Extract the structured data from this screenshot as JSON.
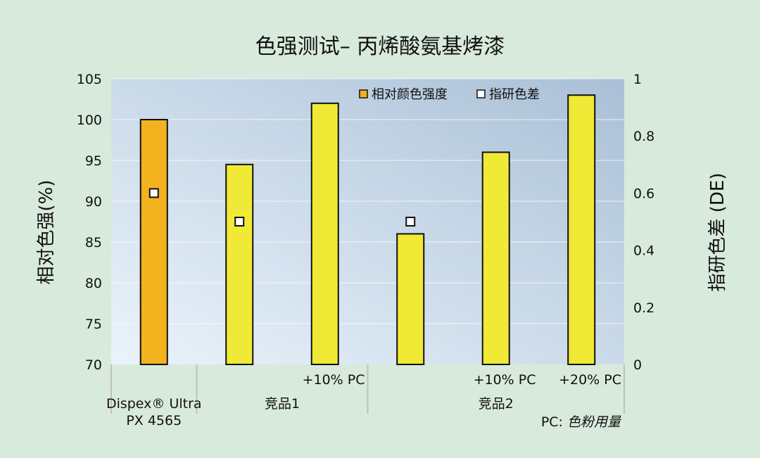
{
  "chart_data": {
    "type": "bar",
    "title": "色强测试– 丙烯酸氨基烤漆",
    "ylabel": "相对色强(%)",
    "y2label": "指研色差 (DE)",
    "ylim": [
      70,
      105
    ],
    "yticks": [
      105,
      100,
      95,
      90,
      85,
      80,
      75,
      70
    ],
    "y2lim": [
      0,
      1
    ],
    "y2ticks": [
      "1",
      "0.8",
      "0.6",
      "0.4",
      "0.2",
      "0"
    ],
    "grid": true,
    "legend_position": "top-right",
    "categories": [
      "",
      "",
      "+10% PC",
      "",
      "+10% PC",
      "+20% PC"
    ],
    "groups": [
      {
        "label_lines": [
          "Dispex® Ultra",
          "PX 4565"
        ],
        "bars": [
          0
        ]
      },
      {
        "label_lines": [
          "竞品1"
        ],
        "bars": [
          1,
          2
        ]
      },
      {
        "label_lines": [
          "竞品2"
        ],
        "bars": [
          3,
          4,
          5
        ]
      }
    ],
    "series": [
      {
        "name": "相对颜色强度",
        "axis": "left",
        "values": [
          100,
          94.5,
          102,
          86,
          96,
          103
        ]
      },
      {
        "name": "指研色差",
        "axis": "right",
        "values": [
          0.6,
          0.5,
          null,
          0.5,
          null,
          null
        ]
      }
    ],
    "bar_colors": [
      "#f3b31f",
      "#f0ea36",
      "#f0ea36",
      "#f0ea36",
      "#f0ea36",
      "#f0ea36"
    ],
    "legend_swatch_color": "#f3b31f",
    "footnote_prefix": "PC: ",
    "footnote_text": "色粉用量"
  }
}
